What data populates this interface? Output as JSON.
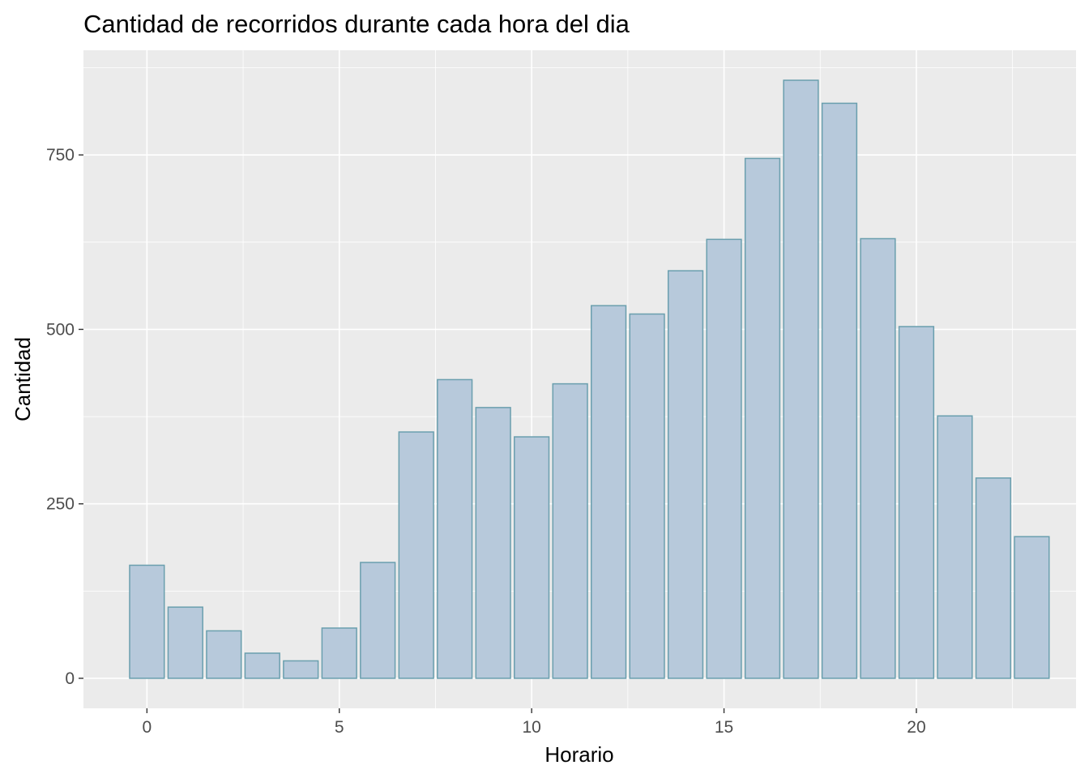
{
  "chart_data": {
    "type": "bar",
    "title": "Cantidad de recorridos durante cada hora del dia",
    "xlabel": "Horario",
    "ylabel": "Cantidad",
    "x": [
      0,
      1,
      2,
      3,
      4,
      5,
      6,
      7,
      8,
      9,
      10,
      11,
      12,
      13,
      14,
      15,
      16,
      17,
      18,
      19,
      20,
      21,
      22,
      23
    ],
    "values": [
      162,
      102,
      68,
      36,
      25,
      72,
      166,
      353,
      428,
      388,
      346,
      422,
      534,
      522,
      584,
      629,
      745,
      857,
      824,
      630,
      504,
      376,
      287,
      203
    ],
    "xlim": [
      -1.65,
      24.15
    ],
    "ylim": [
      -43,
      900
    ],
    "x_ticks": [
      0,
      5,
      10,
      15,
      20
    ],
    "x_tick_labels": [
      "0",
      "5",
      "10",
      "15",
      "20"
    ],
    "y_ticks": [
      0,
      250,
      500,
      750
    ],
    "y_tick_labels": [
      "0",
      "250",
      "500",
      "750"
    ],
    "grid": true,
    "legend": "none",
    "colors": {
      "panel_background": "#ebebeb",
      "grid_major": "#ffffff",
      "bar_fill": "#b7c9db",
      "bar_outline": "#6a9fae",
      "tick_mark": "#333333"
    }
  }
}
